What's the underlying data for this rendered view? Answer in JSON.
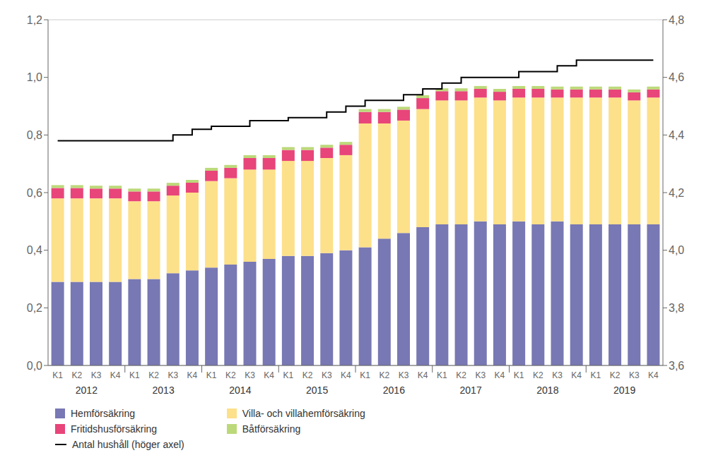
{
  "chart_data": {
    "type": "bar",
    "stacked": true,
    "grid": true,
    "legend": "bottom",
    "categories": [
      "K1",
      "K2",
      "K3",
      "K4",
      "K1",
      "K2",
      "K3",
      "K4",
      "K1",
      "K2",
      "K3",
      "K4",
      "K1",
      "K2",
      "K3",
      "K4",
      "K1",
      "K2",
      "K3",
      "K4",
      "K1",
      "K2",
      "K3",
      "K4",
      "K1",
      "K2",
      "K3",
      "K4",
      "K1",
      "K2",
      "K3",
      "K4"
    ],
    "category_groups": [
      "2012",
      "2013",
      "2014",
      "2015",
      "2016",
      "2017",
      "2018",
      "2019"
    ],
    "ylim": [
      0.0,
      1.2
    ],
    "yticks": [
      {
        "value": 0.0,
        "label": "0,0"
      },
      {
        "value": 0.2,
        "label": "0,2"
      },
      {
        "value": 0.4,
        "label": "0,4"
      },
      {
        "value": 0.6,
        "label": "0,6"
      },
      {
        "value": 0.8,
        "label": "0,8"
      },
      {
        "value": 1.0,
        "label": "1,0"
      },
      {
        "value": 1.2,
        "label": "1,2"
      }
    ],
    "y2lim": [
      3.6,
      4.8
    ],
    "y2ticks": [
      {
        "value": 3.6,
        "label": "3,6"
      },
      {
        "value": 3.8,
        "label": "3,8"
      },
      {
        "value": 4.0,
        "label": "4,0"
      },
      {
        "value": 4.2,
        "label": "4,2"
      },
      {
        "value": 4.4,
        "label": "4,4"
      },
      {
        "value": 4.6,
        "label": "4,6"
      },
      {
        "value": 4.8,
        "label": "4,8"
      }
    ],
    "series": [
      {
        "name": "Hemförsäkring",
        "color": "#7878b4",
        "values": [
          0.29,
          0.29,
          0.29,
          0.29,
          0.3,
          0.3,
          0.32,
          0.33,
          0.34,
          0.35,
          0.36,
          0.37,
          0.38,
          0.38,
          0.39,
          0.4,
          0.41,
          0.44,
          0.46,
          0.48,
          0.49,
          0.49,
          0.5,
          0.49,
          0.5,
          0.49,
          0.5,
          0.49,
          0.49,
          0.49,
          0.49,
          0.49
        ]
      },
      {
        "name": "Villa- och villahemförsäkring",
        "color": "#fde08a",
        "values": [
          0.29,
          0.29,
          0.29,
          0.29,
          0.27,
          0.27,
          0.27,
          0.27,
          0.3,
          0.3,
          0.32,
          0.31,
          0.33,
          0.33,
          0.33,
          0.33,
          0.43,
          0.4,
          0.39,
          0.41,
          0.43,
          0.43,
          0.43,
          0.43,
          0.43,
          0.44,
          0.43,
          0.44,
          0.44,
          0.44,
          0.43,
          0.44
        ]
      },
      {
        "name": "Fritidshusförsäkring",
        "color": "#e8457a",
        "values": [
          0.036,
          0.036,
          0.034,
          0.034,
          0.034,
          0.034,
          0.034,
          0.034,
          0.036,
          0.036,
          0.04,
          0.04,
          0.038,
          0.038,
          0.036,
          0.036,
          0.04,
          0.04,
          0.038,
          0.038,
          0.032,
          0.032,
          0.03,
          0.03,
          0.03,
          0.03,
          0.028,
          0.028,
          0.028,
          0.028,
          0.028,
          0.028
        ]
      },
      {
        "name": "Båtförsäkring",
        "color": "#bcd97a",
        "values": [
          0.01,
          0.01,
          0.01,
          0.01,
          0.01,
          0.01,
          0.01,
          0.01,
          0.01,
          0.01,
          0.01,
          0.01,
          0.01,
          0.01,
          0.01,
          0.01,
          0.01,
          0.01,
          0.01,
          0.01,
          0.01,
          0.01,
          0.01,
          0.01,
          0.01,
          0.01,
          0.01,
          0.01,
          0.01,
          0.01,
          0.01,
          0.01
        ]
      },
      {
        "name": "Antal hushåll (höger axel)",
        "type": "line",
        "axis": "y2",
        "line_style": "step",
        "color": "#000000",
        "values": [
          4.38,
          4.38,
          4.38,
          4.38,
          4.38,
          4.38,
          4.4,
          4.42,
          4.43,
          4.43,
          4.45,
          4.45,
          4.46,
          4.46,
          4.48,
          4.5,
          4.52,
          4.52,
          4.54,
          4.56,
          4.58,
          4.6,
          4.6,
          4.6,
          4.62,
          4.62,
          4.64,
          4.66,
          4.66,
          4.66,
          4.66,
          4.66
        ]
      }
    ]
  }
}
